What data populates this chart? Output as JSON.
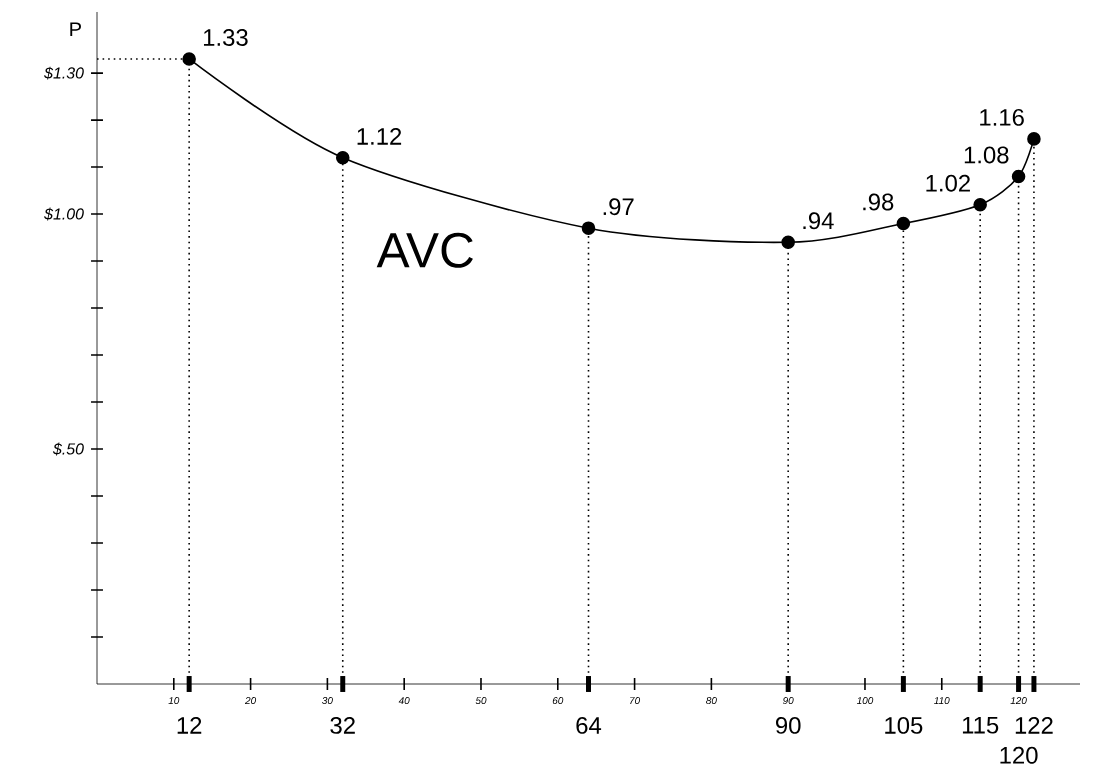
{
  "chart_data": {
    "type": "line",
    "x": [
      12,
      32,
      64,
      90,
      105,
      115,
      120,
      122
    ],
    "series": [
      {
        "name": "AVC",
        "color": "#000000",
        "values": [
          1.33,
          1.12,
          0.97,
          0.94,
          0.98,
          1.02,
          1.08,
          1.16
        ],
        "value_labels": [
          "1.33",
          "1.12",
          ".97",
          ".94",
          ".98",
          "1.02",
          "1.08",
          "1.16"
        ]
      }
    ],
    "ylabel": "P",
    "xlim": [
      0,
      128
    ],
    "ylim": [
      0,
      1.43
    ],
    "xticks": [
      10,
      20,
      30,
      40,
      50,
      60,
      70,
      80,
      90,
      100,
      110,
      120
    ],
    "yticks": [
      {
        "value": 0.1,
        "label": null
      },
      {
        "value": 0.2,
        "label": null
      },
      {
        "value": 0.3,
        "label": null
      },
      {
        "value": 0.4,
        "label": null
      },
      {
        "value": 0.5,
        "label": "$.50"
      },
      {
        "value": 0.6,
        "label": null
      },
      {
        "value": 0.7,
        "label": null
      },
      {
        "value": 0.8,
        "label": null
      },
      {
        "value": 0.9,
        "label": null
      },
      {
        "value": 1.0,
        "label": "$1.00"
      },
      {
        "value": 1.1,
        "label": null
      },
      {
        "value": 1.2,
        "label": null
      },
      {
        "value": 1.3,
        "label": "$1.30"
      }
    ],
    "ref_lines": [
      {
        "axis": "x",
        "value": 12,
        "line_style": "dotted"
      },
      {
        "axis": "x",
        "value": 32,
        "line_style": "dotted"
      },
      {
        "axis": "x",
        "value": 64,
        "line_style": "dotted"
      },
      {
        "axis": "x",
        "value": 90,
        "line_style": "dotted"
      },
      {
        "axis": "x",
        "value": 105,
        "line_style": "dotted"
      },
      {
        "axis": "x",
        "value": 115,
        "line_style": "dotted"
      },
      {
        "axis": "x",
        "value": 120,
        "line_style": "dotted"
      },
      {
        "axis": "x",
        "value": 122,
        "line_style": "dotted"
      },
      {
        "axis": "y",
        "value": 1.33,
        "line_style": "dotted"
      }
    ],
    "annotations": [
      {
        "text": "12",
        "x": 12,
        "y": 0
      },
      {
        "text": "32",
        "x": 32,
        "y": 0
      },
      {
        "text": "64",
        "x": 64,
        "y": 0
      },
      {
        "text": "90",
        "x": 90,
        "y": 0
      },
      {
        "text": "105",
        "x": 105,
        "y": 0
      },
      {
        "text": "115",
        "x": 115,
        "y": 0
      },
      {
        "text": "120",
        "x": 120,
        "y": 0
      },
      {
        "text": "122",
        "x": 122,
        "y": 0
      }
    ],
    "marker": "circle",
    "line_style": "solid"
  }
}
